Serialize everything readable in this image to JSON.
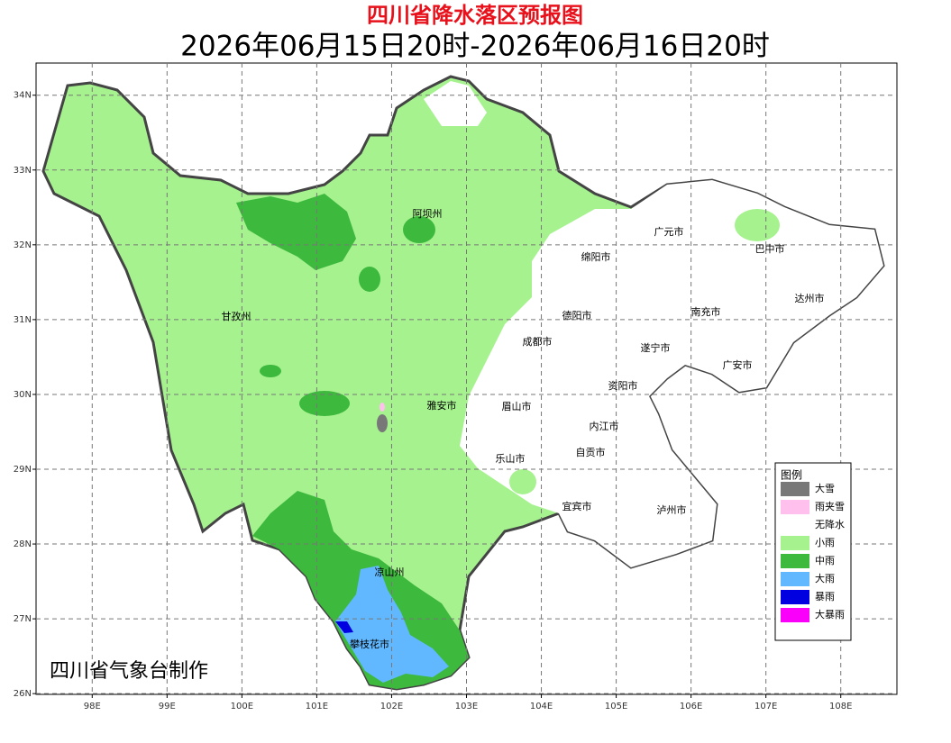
{
  "map": {
    "title": "四川省降水落区预报图",
    "subtitle": "2026年06月15日20时-2026年06月16日20时",
    "credit": "四川省气象台制作",
    "xlim": [
      97.25,
      108.75
    ],
    "ylim": [
      25.99,
      34.43
    ],
    "xticks": [
      {
        "value": 98,
        "label": "98E"
      },
      {
        "value": 99,
        "label": "99E"
      },
      {
        "value": 100,
        "label": "100E"
      },
      {
        "value": 101,
        "label": "101E"
      },
      {
        "value": 102,
        "label": "102E"
      },
      {
        "value": 103,
        "label": "103E"
      },
      {
        "value": 104,
        "label": "104E"
      },
      {
        "value": 105,
        "label": "105E"
      },
      {
        "value": 106,
        "label": "106E"
      },
      {
        "value": 107,
        "label": "107E"
      },
      {
        "value": 108,
        "label": "108E"
      }
    ],
    "yticks": [
      {
        "value": 26,
        "label": "26N"
      },
      {
        "value": 27,
        "label": "27N"
      },
      {
        "value": 28,
        "label": "28N"
      },
      {
        "value": 29,
        "label": "29N"
      },
      {
        "value": 30,
        "label": "30N"
      },
      {
        "value": 31,
        "label": "31N"
      },
      {
        "value": 32,
        "label": "32N"
      },
      {
        "value": 33,
        "label": "33N"
      },
      {
        "value": 34,
        "label": "34N"
      }
    ],
    "grid": true,
    "cities": [
      "阿坝州",
      "甘孜州",
      "广元市",
      "巴中市",
      "绵阳市",
      "达州市",
      "德阳市",
      "南充市",
      "成都市",
      "遂宁市",
      "广安市",
      "雅安市",
      "眉山市",
      "资阳市",
      "内江市",
      "自贡市",
      "乐山市",
      "宜宾市",
      "泸州市",
      "凉山州",
      "攀枝花市"
    ],
    "legend": {
      "title": "图例",
      "items": [
        {
          "name": "大雪",
          "color": "#787878"
        },
        {
          "name": "雨夹雪",
          "color": "#ffc0ee"
        },
        {
          "name": "无降水",
          "color": "#ffffff"
        },
        {
          "name": "小雨",
          "color": "#a6f28f"
        },
        {
          "name": "中雨",
          "color": "#3db93d"
        },
        {
          "name": "大雨",
          "color": "#61b8ff"
        },
        {
          "name": "暴雨",
          "color": "#0000e1"
        },
        {
          "name": "大暴雨",
          "color": "#fa00fa"
        }
      ]
    }
  }
}
